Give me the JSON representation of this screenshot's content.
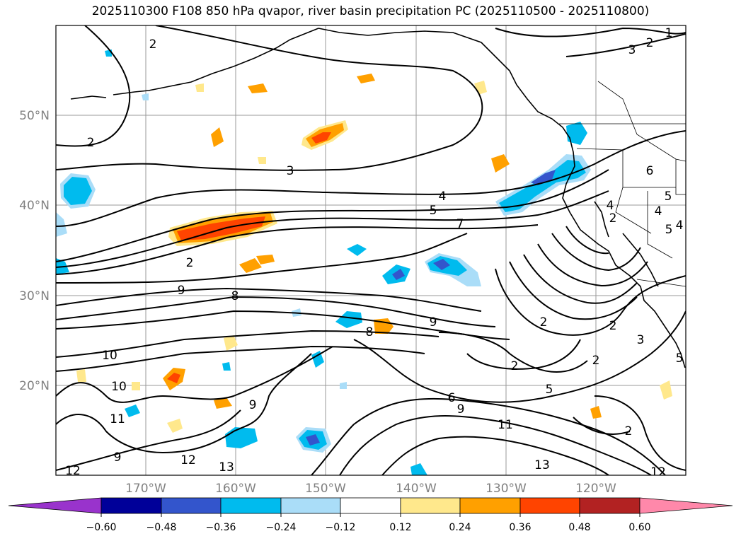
{
  "map": {
    "title": "2025110300 F108 850 hPa qvapor, river basin precipitation PC (2025110500 - 2025110800)",
    "lat_ticks": [
      "50°N",
      "40°N",
      "30°N",
      "20°N"
    ],
    "lon_ticks": [
      "170°W",
      "160°W",
      "150°W",
      "140°W",
      "130°W",
      "120°W"
    ],
    "extent": {
      "lon_min": -180,
      "lon_max": -110,
      "lat_min": 10,
      "lat_max": 60
    },
    "contour_labels": [
      "2",
      "2",
      "3",
      "2",
      "1",
      "3",
      "4",
      "5",
      "7",
      "2",
      "4",
      "5",
      "6",
      "2",
      "9",
      "8",
      "9",
      "8",
      "10",
      "10",
      "11",
      "9",
      "9",
      "12",
      "13",
      "12",
      "11",
      "9",
      "6",
      "5",
      "2",
      "2",
      "3",
      "2",
      "13",
      "12",
      "2",
      "2",
      "5",
      "4",
      "5",
      "4"
    ]
  },
  "colorbar": {
    "ticks": [
      "−0.60",
      "−0.48",
      "−0.36",
      "−0.24",
      "−0.12",
      "0.12",
      "0.24",
      "0.36",
      "0.48",
      "0.60"
    ],
    "colors": [
      "#9933cc",
      "#000099",
      "#3355cc",
      "#00bbee",
      "#aaddf8",
      "#ffffff",
      "#ffe88c",
      "#ffa000",
      "#ff4400",
      "#b22222",
      "#ff88aa"
    ]
  }
}
